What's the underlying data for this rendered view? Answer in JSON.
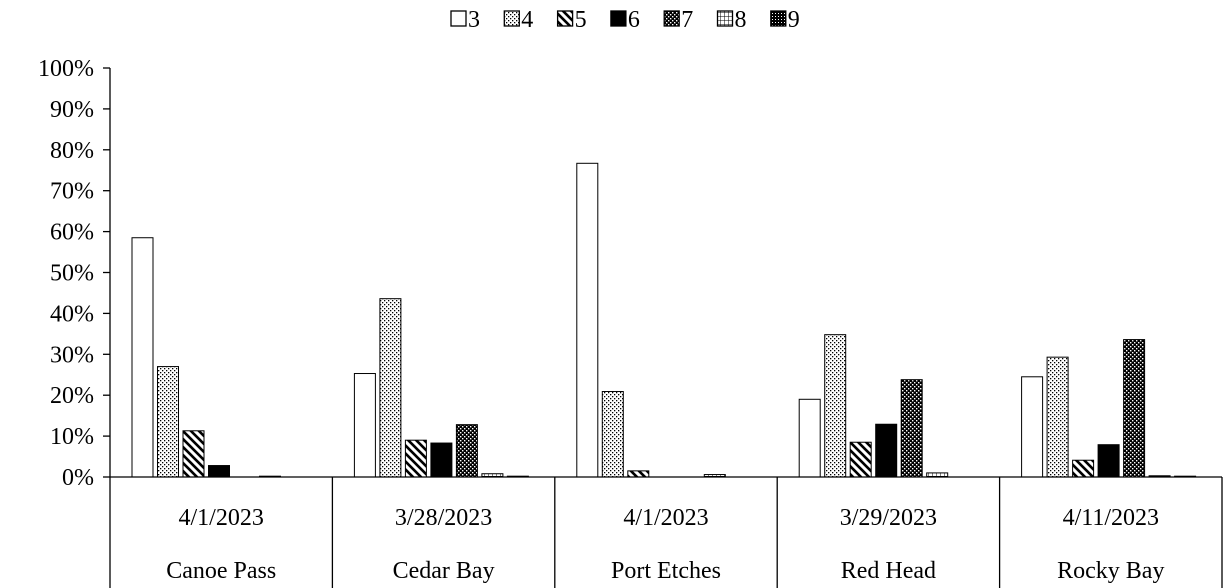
{
  "chart_data": {
    "type": "bar",
    "ylim": [
      0,
      100
    ],
    "y_ticks": [
      "0%",
      "10%",
      "20%",
      "30%",
      "40%",
      "50%",
      "60%",
      "70%",
      "80%",
      "90%",
      "100%"
    ],
    "legend_position": "top",
    "categories": [
      {
        "date": "4/1/2023",
        "site": "Canoe Pass"
      },
      {
        "date": "3/28/2023",
        "site": "Cedar Bay"
      },
      {
        "date": "4/1/2023",
        "site": "Port Etches"
      },
      {
        "date": "3/29/2023",
        "site": "Red Head"
      },
      {
        "date": "4/11/2023",
        "site": "Rocky Bay"
      }
    ],
    "series": [
      {
        "name": "3",
        "pattern": "blank",
        "values": [
          58.5,
          25.3,
          76.7,
          19.0,
          24.5
        ]
      },
      {
        "name": "4",
        "pattern": "dots",
        "values": [
          27.0,
          43.6,
          20.9,
          34.8,
          29.3
        ]
      },
      {
        "name": "5",
        "pattern": "diagonal",
        "values": [
          11.3,
          9.0,
          1.5,
          8.5,
          4.1
        ]
      },
      {
        "name": "6",
        "pattern": "solid",
        "values": [
          2.8,
          8.3,
          0.0,
          12.9,
          7.9
        ]
      },
      {
        "name": "7",
        "pattern": "checker",
        "values": [
          0.0,
          12.8,
          0.0,
          23.8,
          33.6
        ]
      },
      {
        "name": "8",
        "pattern": "grid",
        "values": [
          0.2,
          0.8,
          0.6,
          1.0,
          0.3
        ]
      },
      {
        "name": "9",
        "pattern": "dense-dots",
        "values": [
          0.0,
          0.2,
          0.0,
          0.0,
          0.2
        ]
      }
    ]
  }
}
